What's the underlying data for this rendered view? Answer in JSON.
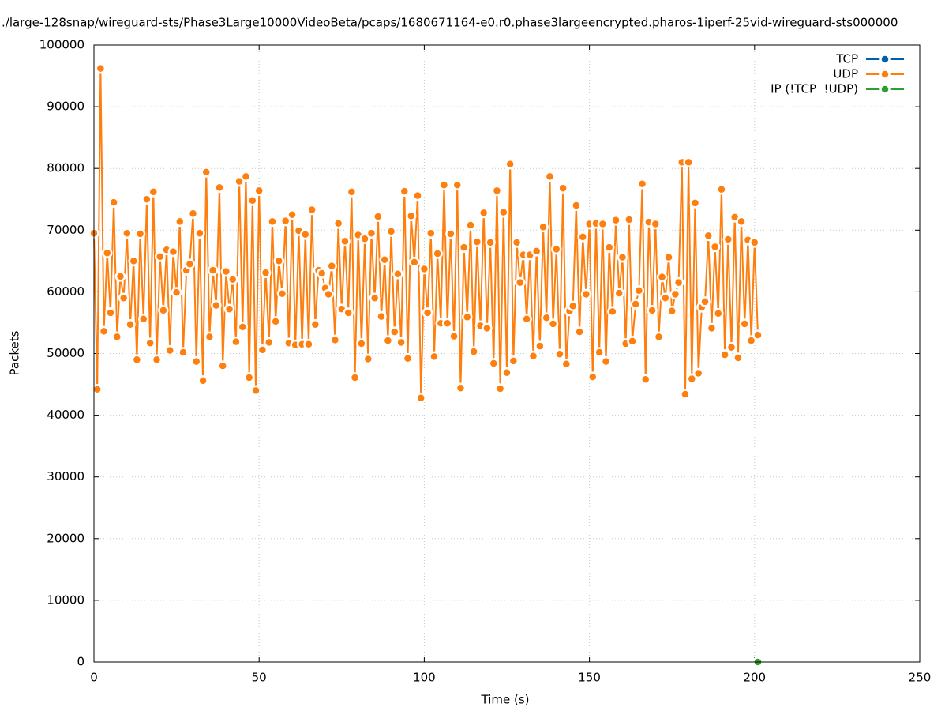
{
  "chart_data": {
    "type": "line",
    "title": "./large-128snap/wireguard-sts/Phase3Large10000VideoBeta/pcaps/1680671164-e0.r0.phase3largeencrypted.pharos-1iperf-25vid-wireguard-sts000000",
    "x_label": "Time (s)",
    "y_label": "Packets",
    "xlim": [
      0,
      250
    ],
    "xticks": [
      0,
      50,
      100,
      150,
      200,
      250
    ],
    "ylim": [
      0,
      100000
    ],
    "yticks": [
      0,
      10000,
      20000,
      30000,
      40000,
      50000,
      60000,
      70000,
      80000,
      90000,
      100000
    ],
    "grid": true,
    "legend": "top-right",
    "series": [
      {
        "name": "TCP",
        "color": "#0060ad",
        "x": [
          201
        ],
        "values": [
          0
        ]
      },
      {
        "name": "UDP",
        "color": "#ff7f0e",
        "x": [
          0,
          1,
          2,
          3,
          4,
          5,
          6,
          7,
          8,
          9,
          10,
          11,
          12,
          13,
          14,
          15,
          16,
          17,
          18,
          19,
          20,
          21,
          22,
          23,
          24,
          25,
          26,
          27,
          28,
          29,
          30,
          31,
          32,
          33,
          34,
          35,
          36,
          37,
          38,
          39,
          40,
          41,
          42,
          43,
          44,
          45,
          46,
          47,
          48,
          49,
          50,
          51,
          52,
          53,
          54,
          55,
          56,
          57,
          58,
          59,
          60,
          61,
          62,
          63,
          64,
          65,
          66,
          67,
          68,
          69,
          70,
          71,
          72,
          73,
          74,
          75,
          76,
          77,
          78,
          79,
          80,
          81,
          82,
          83,
          84,
          85,
          86,
          87,
          88,
          89,
          90,
          91,
          92,
          93,
          94,
          95,
          96,
          97,
          98,
          99,
          100,
          101,
          102,
          103,
          104,
          105,
          106,
          107,
          108,
          109,
          110,
          111,
          112,
          113,
          114,
          115,
          116,
          117,
          118,
          119,
          120,
          121,
          122,
          123,
          124,
          125,
          126,
          127,
          128,
          129,
          130,
          131,
          132,
          133,
          134,
          135,
          136,
          137,
          138,
          139,
          140,
          141,
          142,
          143,
          144,
          145,
          146,
          147,
          148,
          149,
          150,
          151,
          152,
          153,
          154,
          155,
          156,
          157,
          158,
          159,
          160,
          161,
          162,
          163,
          164,
          165,
          166,
          167,
          168,
          169,
          170,
          171,
          172,
          173,
          174,
          175,
          176,
          177,
          178,
          179,
          180,
          181,
          182,
          183,
          184,
          185,
          186,
          187,
          188,
          189,
          190,
          191,
          192,
          193,
          194,
          195,
          196,
          197,
          198,
          199,
          200,
          201
        ],
        "values": [
          69500,
          44200,
          96200,
          53600,
          66300,
          56600,
          74500,
          52700,
          62500,
          59000,
          69500,
          54700,
          65000,
          49000,
          69400,
          55600,
          75000,
          51700,
          76200,
          49000,
          65700,
          57000,
          66800,
          50500,
          66500,
          59900,
          71400,
          50200,
          63500,
          64500,
          72700,
          48700,
          69500,
          45600,
          79400,
          52700,
          63500,
          57800,
          76900,
          48000,
          63300,
          57200,
          62000,
          51900,
          77900,
          54300,
          78700,
          46100,
          74800,
          44000,
          76400,
          50600,
          63100,
          51800,
          71400,
          55200,
          65000,
          59700,
          71500,
          51700,
          72500,
          51400,
          69900,
          51500,
          69300,
          51500,
          73300,
          54700,
          63500,
          63000,
          60600,
          59600,
          64200,
          52200,
          71100,
          57200,
          68200,
          56600,
          76200,
          46100,
          69200,
          51600,
          68600,
          49100,
          69500,
          59000,
          72200,
          56000,
          65200,
          52100,
          69800,
          53500,
          62900,
          51800,
          76300,
          49200,
          72300,
          64800,
          75600,
          42800,
          63700,
          56600,
          69500,
          49500,
          66200,
          54900,
          77300,
          54900,
          69400,
          52800,
          77300,
          44400,
          67200,
          55900,
          70800,
          50300,
          68100,
          54500,
          72800,
          54100,
          68000,
          48400,
          76400,
          44300,
          72900,
          46900,
          80700,
          48800,
          68000,
          61500,
          66000,
          55600,
          66000,
          49600,
          66600,
          51200,
          70500,
          55800,
          78700,
          54800,
          66900,
          49900,
          76800,
          48300,
          56900,
          57700,
          74000,
          53500,
          68900,
          59600,
          71000,
          46200,
          71100,
          50200,
          71000,
          48700,
          67200,
          56800,
          71600,
          59800,
          65600,
          51600,
          71700,
          52000,
          58000,
          60200,
          77500,
          45800,
          71300,
          57000,
          71000,
          52700,
          62400,
          59000,
          65600,
          56900,
          59600,
          61500,
          81000,
          43400,
          81000,
          45900,
          74400,
          46800,
          57500,
          58400,
          69100,
          54100,
          67300,
          56500,
          76600,
          49800,
          68500,
          51000,
          72100,
          49300,
          71400,
          54800,
          68400,
          52100,
          68000,
          53000
        ]
      },
      {
        "name": "IP (!TCP  !UDP)",
        "color": "#2ca02c",
        "x": [
          201
        ],
        "values": [
          0
        ]
      }
    ]
  }
}
